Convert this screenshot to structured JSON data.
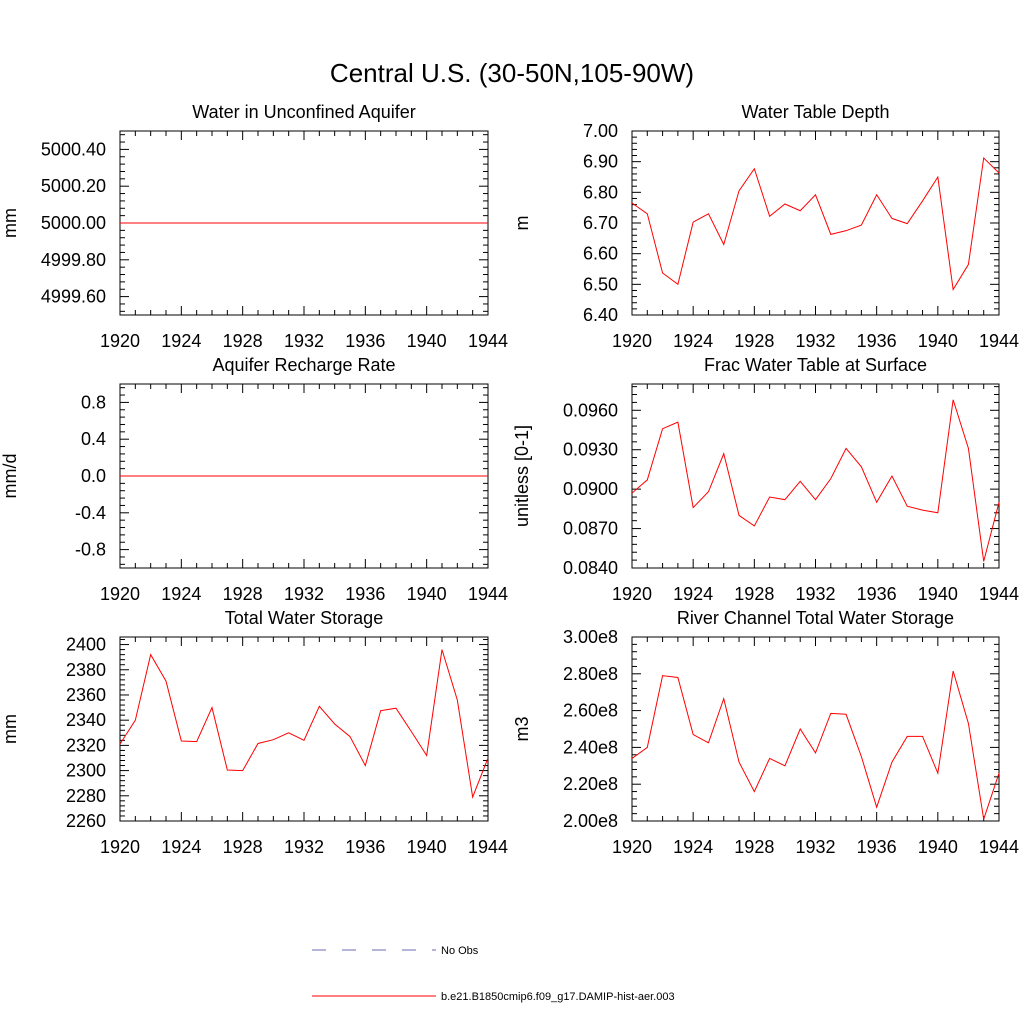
{
  "title": "Central U.S. (30-50N,105-90W)",
  "colors": {
    "model_line": "#ff0000",
    "obs_line": "#6b6bb5",
    "axis": "#000000"
  },
  "legend": {
    "obs_label": "No Obs",
    "model_label": "b.e21.B1850cmip6.f09_g17.DAMIP-hist-aer.003"
  },
  "chart_data": [
    {
      "type": "line",
      "title": "Water in Unconfined Aquifer",
      "ylabel": "mm",
      "xlim": [
        1920,
        1944
      ],
      "ylim": [
        4999.5,
        5000.5
      ],
      "xticks": [
        "1920",
        "1924",
        "1928",
        "1932",
        "1936",
        "1940",
        "1944"
      ],
      "yticks": [
        "4999.60",
        "4999.80",
        "5000.00",
        "5000.20",
        "5000.40"
      ],
      "x": [
        1920,
        1921,
        1922,
        1923,
        1924,
        1925,
        1926,
        1927,
        1928,
        1929,
        1930,
        1931,
        1932,
        1933,
        1934,
        1935,
        1936,
        1937,
        1938,
        1939,
        1940,
        1941,
        1942,
        1943,
        1944
      ],
      "series": [
        {
          "values": [
            5000,
            5000,
            5000,
            5000,
            5000,
            5000,
            5000,
            5000,
            5000,
            5000,
            5000,
            5000,
            5000,
            5000,
            5000,
            5000,
            5000,
            5000,
            5000,
            5000,
            5000,
            5000,
            5000,
            5000,
            5000
          ]
        }
      ]
    },
    {
      "type": "line",
      "title": "Water Table Depth",
      "ylabel": "m",
      "xlim": [
        1920,
        1944
      ],
      "ylim": [
        6.4,
        7.0
      ],
      "xticks": [
        "1920",
        "1924",
        "1928",
        "1932",
        "1936",
        "1940",
        "1944"
      ],
      "yticks": [
        "6.40",
        "6.50",
        "6.60",
        "6.70",
        "6.80",
        "6.90",
        "7.00"
      ],
      "x": [
        1920,
        1921,
        1922,
        1923,
        1924,
        1925,
        1926,
        1927,
        1928,
        1929,
        1930,
        1931,
        1932,
        1933,
        1934,
        1935,
        1936,
        1937,
        1938,
        1939,
        1940,
        1941,
        1942,
        1943,
        1944
      ],
      "series": [
        {
          "values": [
            6.765,
            6.73,
            6.537,
            6.5,
            6.703,
            6.73,
            6.63,
            6.805,
            6.877,
            6.722,
            6.762,
            6.74,
            6.792,
            6.663,
            6.675,
            6.693,
            6.792,
            6.715,
            6.698,
            6.772,
            6.85,
            6.483,
            6.565,
            6.912,
            6.863
          ]
        }
      ]
    },
    {
      "type": "line",
      "title": "Aquifer Recharge Rate",
      "ylabel": "mm/d",
      "xlim": [
        1920,
        1944
      ],
      "ylim": [
        -1.0,
        1.0
      ],
      "xticks": [
        "1920",
        "1924",
        "1928",
        "1932",
        "1936",
        "1940",
        "1944"
      ],
      "yticks": [
        "-0.8",
        "-0.4",
        "0.0",
        "0.4",
        "0.8"
      ],
      "x": [
        1920,
        1921,
        1922,
        1923,
        1924,
        1925,
        1926,
        1927,
        1928,
        1929,
        1930,
        1931,
        1932,
        1933,
        1934,
        1935,
        1936,
        1937,
        1938,
        1939,
        1940,
        1941,
        1942,
        1943,
        1944
      ],
      "series": [
        {
          "values": [
            0,
            0,
            0,
            0,
            0,
            0,
            0,
            0,
            0,
            0,
            0,
            0,
            0,
            0,
            0,
            0,
            0,
            0,
            0,
            0,
            0,
            0,
            0,
            0,
            0
          ]
        }
      ]
    },
    {
      "type": "line",
      "title": "Frac Water Table at Surface",
      "ylabel": "unitless [0-1]",
      "xlim": [
        1920,
        1944
      ],
      "ylim": [
        0.084,
        0.098
      ],
      "xticks": [
        "1920",
        "1924",
        "1928",
        "1932",
        "1936",
        "1940",
        "1944"
      ],
      "yticks": [
        "0.0840",
        "0.0870",
        "0.0900",
        "0.0930",
        "0.0960"
      ],
      "x": [
        1920,
        1921,
        1922,
        1923,
        1924,
        1925,
        1926,
        1927,
        1928,
        1929,
        1930,
        1931,
        1932,
        1933,
        1934,
        1935,
        1936,
        1937,
        1938,
        1939,
        1940,
        1941,
        1942,
        1943,
        1944
      ],
      "series": [
        {
          "values": [
            0.0897,
            0.0907,
            0.0946,
            0.0951,
            0.0886,
            0.0898,
            0.0927,
            0.088,
            0.0872,
            0.0894,
            0.0892,
            0.0906,
            0.0892,
            0.0908,
            0.0931,
            0.0917,
            0.089,
            0.091,
            0.0887,
            0.0884,
            0.0882,
            0.0968,
            0.0931,
            0.0845,
            0.089
          ]
        }
      ]
    },
    {
      "type": "line",
      "title": "Total Water Storage",
      "ylabel": "mm",
      "xlim": [
        1920,
        1944
      ],
      "ylim": [
        2260,
        2406
      ],
      "xticks": [
        "1920",
        "1924",
        "1928",
        "1932",
        "1936",
        "1940",
        "1944"
      ],
      "yticks": [
        "2260",
        "2280",
        "2300",
        "2320",
        "2340",
        "2360",
        "2380",
        "2400"
      ],
      "x": [
        1920,
        1921,
        1922,
        1923,
        1924,
        1925,
        1926,
        1927,
        1928,
        1929,
        1930,
        1931,
        1932,
        1933,
        1934,
        1935,
        1936,
        1937,
        1938,
        1939,
        1940,
        1941,
        1942,
        1943,
        1944
      ],
      "series": [
        {
          "values": [
            2321,
            2340,
            2392,
            2371,
            2323.5,
            2323,
            2350,
            2300.5,
            2300,
            2321.5,
            2324.5,
            2330,
            2324,
            2351,
            2337,
            2327,
            2304,
            2347.5,
            2349.5,
            2331,
            2312,
            2396,
            2356,
            2279,
            2310
          ]
        }
      ]
    },
    {
      "type": "line",
      "title": "River Channel Total Water Storage",
      "ylabel": "m3",
      "xlim": [
        1920,
        1944
      ],
      "ylim": [
        200000000.0,
        300000000.0
      ],
      "xticks": [
        "1920",
        "1924",
        "1928",
        "1932",
        "1936",
        "1940",
        "1944"
      ],
      "yticks": [
        "2.00e8",
        "2.20e8",
        "2.40e8",
        "2.60e8",
        "2.80e8",
        "3.00e8"
      ],
      "x": [
        1920,
        1921,
        1922,
        1923,
        1924,
        1925,
        1926,
        1927,
        1928,
        1929,
        1930,
        1931,
        1932,
        1933,
        1934,
        1935,
        1936,
        1937,
        1938,
        1939,
        1940,
        1941,
        1942,
        1943,
        1944
      ],
      "series": [
        {
          "values": [
            234000000.0,
            240000000.0,
            279000000.0,
            278000000.0,
            247000000.0,
            242500000.0,
            266500000.0,
            232000000.0,
            216000000.0,
            234000000.0,
            230000000.0,
            250000000.0,
            237000000.0,
            258500000.0,
            258000000.0,
            235000000.0,
            207500000.0,
            232000000.0,
            246000000.0,
            246000000.0,
            226000000.0,
            281500000.0,
            253000000.0,
            201000000.0,
            226000000.0
          ]
        }
      ]
    }
  ]
}
